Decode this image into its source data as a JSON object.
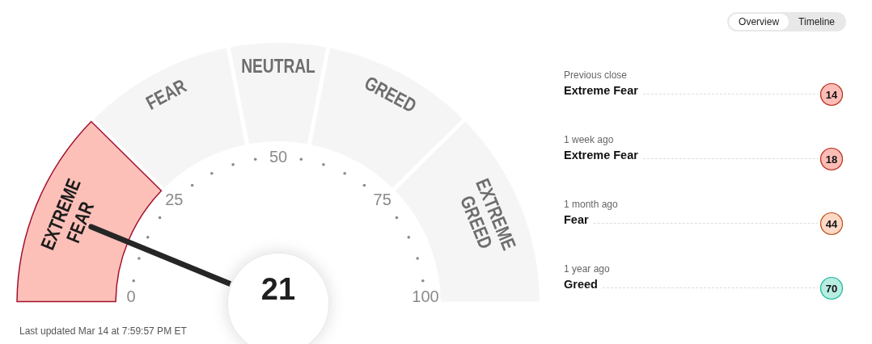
{
  "chart_data": [
    {
      "type": "donut",
      "categories": [
        "EXTREME FEAR",
        "FEAR",
        "NEUTRAL",
        "GREED",
        "EXTREME GREED"
      ],
      "values": [
        25,
        19,
        12,
        19,
        25
      ],
      "colors": [
        "#fdc0b8",
        "#f5f5f5",
        "#f5f5f5",
        "#f5f5f5",
        "#f5f5f5"
      ],
      "needle": "EXTREME FEAR",
      "annotations": [
        "21",
        "0",
        "25",
        "50",
        "75",
        "100",
        "Last updated Mar 14 at 7:59:57 PM ET"
      ]
    },
    {
      "type": "other",
      "categories": [
        "Previous close",
        "1 week ago",
        "1 month ago",
        "1 year ago"
      ],
      "values": [
        14,
        18,
        44,
        70
      ],
      "colors": [
        "#fbbdb6",
        "#fbbdb6",
        "#fdd8c5",
        "#b8ede1"
      ],
      "data_labels": true,
      "annotations": [
        "Extreme Fear",
        "Extreme Fear",
        "Fear",
        "Greed",
        "Overview",
        "Timeline"
      ]
    }
  ]
}
